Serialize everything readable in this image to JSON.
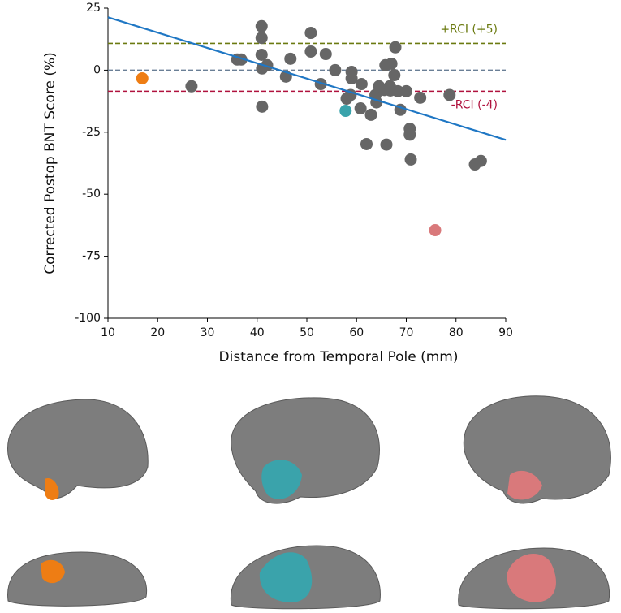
{
  "chart_data": {
    "type": "scatter",
    "xlabel": "Distance from Temporal Pole (mm)",
    "ylabel": "Corrected Postop BNT Score (%)",
    "xlim": [
      10,
      90
    ],
    "xticks": [
      10,
      20,
      30,
      40,
      50,
      60,
      70,
      80,
      90
    ],
    "ylim": [
      -100,
      25
    ],
    "yticks": [
      -100,
      -75,
      -50,
      -25,
      0,
      25
    ],
    "x": [
      26.8,
      36,
      36.8,
      40.9,
      40.9,
      40.9,
      41,
      41,
      42,
      45.8,
      46.7,
      50.8,
      50.8,
      52.8,
      53.8,
      55.7,
      58,
      58.8,
      59,
      59,
      60.8,
      61,
      62,
      62.9,
      63.8,
      64,
      64.5,
      65.6,
      65.8,
      66,
      66.7,
      67,
      66.8,
      67.6,
      67.8,
      68.3,
      68.8,
      70,
      70.7,
      70.7,
      70.9,
      72.8,
      78.7,
      83.8,
      85,
      16.9,
      57.8,
      75.8
    ],
    "values": [
      -6.5,
      4.3,
      4.3,
      17.7,
      13,
      6.2,
      0.7,
      -14.7,
      2,
      -2.6,
      4.6,
      15,
      7.5,
      -5.6,
      6.5,
      0,
      -11.5,
      -10,
      -0.7,
      -3.3,
      -15.4,
      -5.6,
      -29.8,
      -18,
      -10,
      -13,
      -6.5,
      -8,
      2,
      -30,
      -6.5,
      2.6,
      -8.2,
      -2,
      9.2,
      -8.5,
      -16,
      -8.5,
      -23.6,
      -26,
      -36,
      -11.1,
      -10,
      -38,
      -36.6,
      -3.3,
      -16.4,
      -64.5
    ],
    "colors": [
      "#666666",
      "#666666",
      "#666666",
      "#666666",
      "#666666",
      "#666666",
      "#666666",
      "#666666",
      "#666666",
      "#666666",
      "#666666",
      "#666666",
      "#666666",
      "#666666",
      "#666666",
      "#666666",
      "#666666",
      "#666666",
      "#666666",
      "#666666",
      "#666666",
      "#666666",
      "#666666",
      "#666666",
      "#666666",
      "#666666",
      "#666666",
      "#666666",
      "#666666",
      "#666666",
      "#666666",
      "#666666",
      "#666666",
      "#666666",
      "#666666",
      "#666666",
      "#666666",
      "#666666",
      "#666666",
      "#666666",
      "#666666",
      "#666666",
      "#666666",
      "#666666",
      "#666666",
      "#ee7d14",
      "#3aa3ab",
      "#d9797b"
    ],
    "trend": {
      "x": [
        10,
        90
      ],
      "y": [
        21.3,
        -28.1
      ],
      "color": "#1f77c4"
    },
    "reference_lines": [
      {
        "y": 10.8,
        "color": "#6b7a10",
        "text": "+RCI (+5)"
      },
      {
        "y": 0,
        "color": "#6a7f96"
      },
      {
        "y": -8.5,
        "color": "#b0123e",
        "text": "-RCI (-4)"
      }
    ]
  }
}
